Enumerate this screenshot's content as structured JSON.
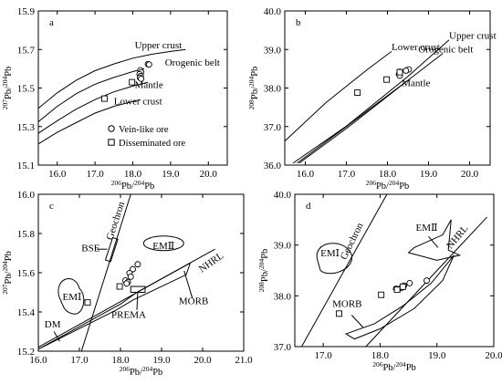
{
  "chart_data": [
    {
      "id": "a",
      "type": "scatter",
      "title": "a",
      "xlabel": "206Pb/204Pb",
      "ylabel": "207Pb/204Pb",
      "xlim": [
        15.5,
        20.5
      ],
      "ylim": [
        15.1,
        15.9
      ],
      "xticks": [
        "16.0",
        "17.0",
        "18.0",
        "19.0",
        "20.0"
      ],
      "yticks": [
        "15.1",
        "15.3",
        "15.5",
        "15.7",
        "15.9"
      ],
      "legend": [
        {
          "marker": "circle",
          "label": "Vein-like ore"
        },
        {
          "marker": "square",
          "label": "Disseminated ore"
        }
      ],
      "curves": [
        {
          "name": "Upper crust",
          "points": [
            [
              15.5,
              15.395
            ],
            [
              16.0,
              15.475
            ],
            [
              16.5,
              15.54
            ],
            [
              17.0,
              15.59
            ],
            [
              17.5,
              15.625
            ],
            [
              18.0,
              15.655
            ],
            [
              18.5,
              15.675
            ],
            [
              19.0,
              15.69
            ],
            [
              19.4,
              15.7
            ]
          ]
        },
        {
          "name": "Orogenic belt",
          "points": [
            [
              15.5,
              15.325
            ],
            [
              16.0,
              15.405
            ],
            [
              16.5,
              15.47
            ],
            [
              17.0,
              15.52
            ],
            [
              17.5,
              15.555
            ],
            [
              18.0,
              15.585
            ],
            [
              18.3,
              15.6
            ]
          ]
        },
        {
          "name": "Mantle",
          "points": [
            [
              15.5,
              15.265
            ],
            [
              16.0,
              15.33
            ],
            [
              16.5,
              15.39
            ],
            [
              17.0,
              15.44
            ],
            [
              17.5,
              15.48
            ],
            [
              18.0,
              15.51
            ],
            [
              18.4,
              15.53
            ]
          ]
        },
        {
          "name": "Lower crust",
          "points": [
            [
              15.5,
              15.21
            ],
            [
              16.0,
              15.27
            ],
            [
              16.5,
              15.32
            ],
            [
              17.0,
              15.37
            ],
            [
              17.5,
              15.405
            ],
            [
              18.0,
              15.43
            ],
            [
              18.2,
              15.44
            ]
          ]
        }
      ],
      "curve_label_positions": [
        {
          "name": "Upper crust",
          "x": 18.05,
          "y": 15.706
        },
        {
          "name": "Orogenic belt",
          "x": 18.85,
          "y": 15.617
        },
        {
          "name": "Mantle",
          "x": 18.05,
          "y": 15.5
        },
        {
          "name": "Lower crust",
          "x": 17.5,
          "y": 15.415
        }
      ],
      "vein_like_ore": [
        [
          18.4,
          15.624
        ],
        [
          18.43,
          15.622
        ],
        [
          18.2,
          15.592
        ],
        [
          18.22,
          15.582
        ],
        [
          18.18,
          15.572
        ],
        [
          18.21,
          15.562
        ],
        [
          18.19,
          15.554
        ],
        [
          18.22,
          15.548
        ]
      ],
      "disseminated_ore": [
        [
          17.25,
          15.445
        ],
        [
          17.98,
          15.53
        ]
      ]
    },
    {
      "id": "b",
      "type": "scatter",
      "title": "b",
      "xlabel": "206Pb/204Pb",
      "ylabel": "208Pb/204Pb",
      "xlim": [
        15.5,
        20.5
      ],
      "ylim": [
        36.0,
        40.0
      ],
      "xticks": [
        "16.0",
        "17.0",
        "18.0",
        "19.0",
        "20.0"
      ],
      "yticks": [
        "36.0",
        "37.0",
        "38.0",
        "39.0",
        "40.0"
      ],
      "curves": [
        {
          "name": "Lower crust",
          "points": [
            [
              15.5,
              36.62
            ],
            [
              16.5,
              37.62
            ],
            [
              17.5,
              38.47
            ],
            [
              18.1,
              38.95
            ]
          ]
        },
        {
          "name": "Upper crust",
          "points": [
            [
              15.7,
              36.05
            ],
            [
              17.0,
              37.01
            ],
            [
              18.5,
              38.3
            ],
            [
              19.5,
              39.25
            ]
          ]
        },
        {
          "name": "Orogenic belt",
          "points": [
            [
              15.8,
              36.05
            ],
            [
              17.0,
              37.0
            ],
            [
              18.5,
              38.2
            ],
            [
              19.35,
              38.9
            ]
          ]
        },
        {
          "name": "Mantle",
          "points": [
            [
              15.85,
              36.05
            ],
            [
              17.0,
              36.95
            ],
            [
              18.2,
              37.95
            ],
            [
              18.5,
              38.2
            ]
          ]
        }
      ],
      "curve_label_positions": [
        {
          "name": "Lower crust",
          "x": 18.1,
          "y": 38.98
        },
        {
          "name": "Upper crust",
          "x": 19.5,
          "y": 39.28
        },
        {
          "name": "Orogenic belt",
          "x": 18.75,
          "y": 38.92
        },
        {
          "name": "Mantle",
          "x": 18.35,
          "y": 38.05
        }
      ],
      "vein_like_ore": [
        [
          18.52,
          38.48
        ],
        [
          18.45,
          38.45
        ],
        [
          18.3,
          38.42
        ],
        [
          18.28,
          38.36
        ],
        [
          18.3,
          38.32
        ]
      ],
      "disseminated_ore": [
        [
          17.27,
          37.88
        ],
        [
          17.98,
          38.22
        ],
        [
          18.3,
          38.41
        ]
      ]
    },
    {
      "id": "c",
      "type": "scatter",
      "title": "c",
      "xlabel": "206Pb/204Pb",
      "ylabel": "207Pb/204Pb",
      "xlim": [
        16.0,
        21.0
      ],
      "ylim": [
        15.2,
        16.0
      ],
      "xticks": [
        "16.0",
        "17.0",
        "18.0",
        "19.0",
        "20.0",
        "21.0"
      ],
      "yticks": [
        "15.2",
        "15.4",
        "15.6",
        "15.8",
        "16.0"
      ],
      "lines": [
        {
          "name": "Geochron",
          "points": [
            [
              17.05,
              15.2
            ],
            [
              18.25,
              16.0
            ]
          ]
        },
        {
          "name": "NHRL",
          "points": [
            [
              16.0,
              15.22
            ],
            [
              20.3,
              15.72
            ]
          ]
        }
      ],
      "fields": [
        {
          "name": "EMⅠ",
          "label_x": 16.82,
          "label_y": 15.46
        },
        {
          "name": "EMⅡ",
          "label_x": 19.05,
          "label_y": 15.74
        },
        {
          "name": "BSE",
          "label_x": 17.3,
          "label_y": 15.7
        },
        {
          "name": "PREMA",
          "label_x": 18.2,
          "label_y": 15.37
        },
        {
          "name": "MORB",
          "label_x": 19.78,
          "label_y": 15.44
        },
        {
          "name": "DM",
          "label_x": 16.35,
          "label_y": 15.34
        }
      ],
      "vein_like_ore": [
        [
          18.42,
          15.643
        ],
        [
          18.3,
          15.618
        ],
        [
          18.22,
          15.598
        ],
        [
          18.25,
          15.58
        ],
        [
          18.12,
          15.56
        ],
        [
          18.18,
          15.552
        ],
        [
          18.15,
          15.545
        ]
      ],
      "disseminated_ore": [
        [
          17.2,
          15.448
        ],
        [
          17.98,
          15.53
        ]
      ]
    },
    {
      "id": "d",
      "type": "scatter",
      "title": "d",
      "xlabel": "206Pb/204Pb",
      "ylabel": "208Pb/204Pb",
      "xlim": [
        16.5,
        20.0
      ],
      "ylim": [
        37.0,
        40.0
      ],
      "xticks": [
        "17.0",
        "18.0",
        "19.0",
        "20.0"
      ],
      "yticks": [
        "37.0",
        "38.0",
        "39.0",
        "40.0"
      ],
      "lines": [
        {
          "name": "Geochron",
          "points": [
            [
              16.62,
              37.0
            ],
            [
              18.12,
              40.0
            ]
          ]
        },
        {
          "name": "NHRL",
          "points": [
            [
              17.75,
              37.0
            ],
            [
              19.88,
              39.55
            ]
          ]
        }
      ],
      "fields": [
        {
          "name": "EMⅠ",
          "label_x": 17.12,
          "label_y": 38.78
        },
        {
          "name": "EMⅡ",
          "label_x": 18.82,
          "label_y": 39.28
        },
        {
          "name": "MORB",
          "label_x": 17.42,
          "label_y": 37.78
        }
      ],
      "vein_like_ore": [
        [
          18.82,
          38.3
        ],
        [
          18.52,
          38.25
        ],
        [
          18.42,
          38.2
        ],
        [
          18.38,
          38.16
        ],
        [
          18.32,
          38.13
        ],
        [
          18.28,
          38.14
        ]
      ],
      "disseminated_ore": [
        [
          17.28,
          37.65
        ],
        [
          18.02,
          38.02
        ],
        [
          18.4,
          38.18
        ],
        [
          18.3,
          38.12
        ]
      ]
    }
  ]
}
